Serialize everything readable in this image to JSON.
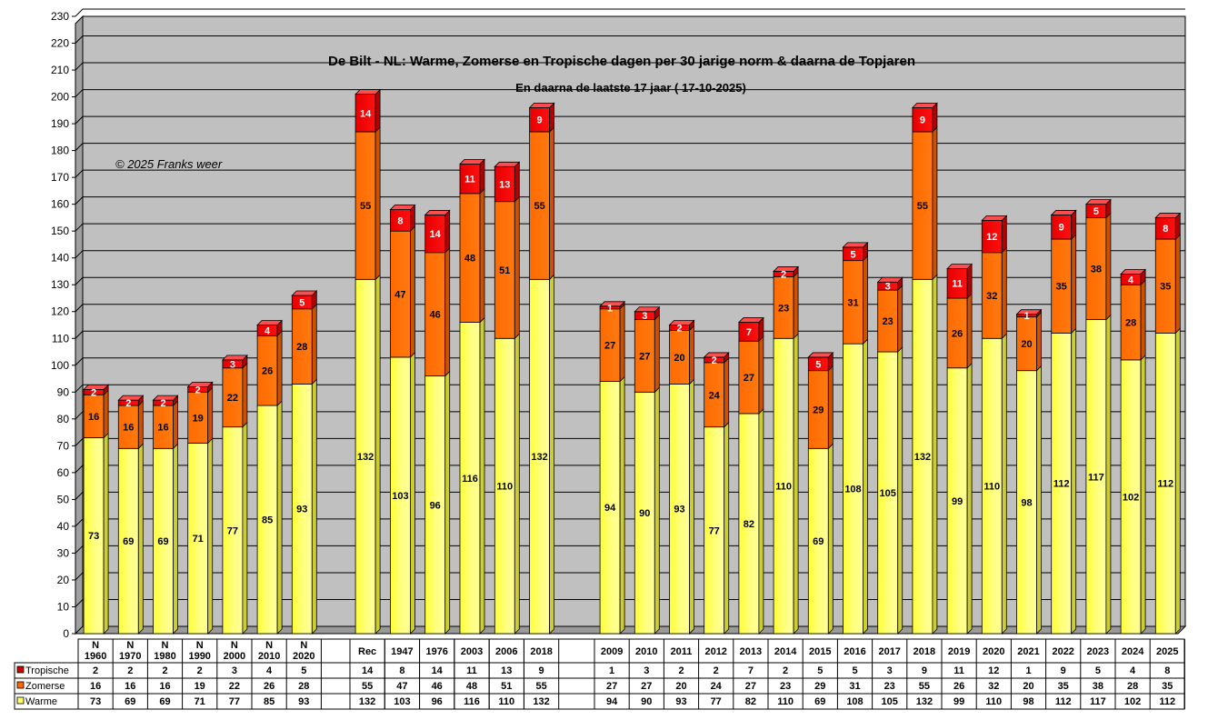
{
  "chart_data": {
    "type": "bar",
    "stacked": true,
    "title": "De Bilt - NL: Warme, Zomerse en Tropische dagen per 30 jarige norm & daarna de Topjaren",
    "subtitle": "En daarna de laatste 17 jaar ( 17-10-2025)",
    "annotation": "© 2025 Franks weer",
    "ylim": [
      0,
      230
    ],
    "ytick_step": 10,
    "grid": true,
    "legend_placement": "table-left",
    "groups": [
      {
        "categories": [
          "N\n1960",
          "N\n1970",
          "N\n1980",
          "N\n1990",
          "N\n2000",
          "N\n2010",
          "N\n2020"
        ]
      },
      {
        "categories": [
          "Rec",
          "1947",
          "1976",
          "2003",
          "2006",
          "2018"
        ]
      },
      {
        "categories": [
          "2009",
          "2010",
          "2011",
          "2012",
          "2013",
          "2014",
          "2015",
          "2016",
          "2017",
          "2018",
          "2019",
          "2020",
          "2021",
          "2022",
          "2023",
          "2024",
          "2025"
        ]
      }
    ],
    "categories": [
      "N\n1960",
      "N\n1970",
      "N\n1980",
      "N\n1990",
      "N\n2000",
      "N\n2010",
      "N\n2020",
      "Rec",
      "1947",
      "1976",
      "2003",
      "2006",
      "2018",
      "2009",
      "2010",
      "2011",
      "2012",
      "2013",
      "2014",
      "2015",
      "2016",
      "2017",
      "2018",
      "2019",
      "2020",
      "2021",
      "2022",
      "2023",
      "2024",
      "2025"
    ],
    "series": [
      {
        "name": "Warme",
        "color": "#ffff66",
        "values": [
          73,
          69,
          69,
          71,
          77,
          85,
          93,
          132,
          103,
          96,
          116,
          110,
          132,
          94,
          90,
          93,
          77,
          82,
          110,
          69,
          108,
          105,
          132,
          99,
          110,
          98,
          112,
          117,
          102,
          112
        ]
      },
      {
        "name": "Zomerse",
        "color": "#ff6600",
        "values": [
          16,
          16,
          16,
          19,
          22,
          26,
          28,
          55,
          47,
          46,
          48,
          51,
          55,
          27,
          27,
          20,
          24,
          27,
          23,
          29,
          31,
          23,
          55,
          26,
          32,
          20,
          35,
          38,
          28,
          35
        ]
      },
      {
        "name": "Tropische",
        "color": "#ee0000",
        "values": [
          2,
          2,
          2,
          2,
          3,
          4,
          5,
          14,
          8,
          14,
          11,
          13,
          9,
          1,
          3,
          2,
          2,
          7,
          2,
          5,
          5,
          3,
          9,
          11,
          12,
          1,
          9,
          5,
          4,
          8
        ]
      }
    ]
  }
}
